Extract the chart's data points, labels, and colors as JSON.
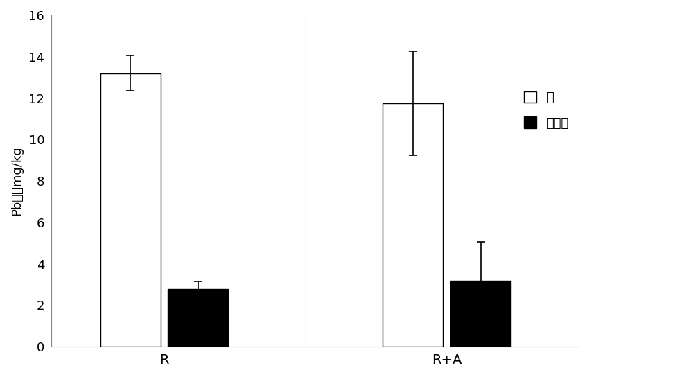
{
  "groups": [
    "R",
    "R+A"
  ],
  "series": [
    {
      "label": "根",
      "color": "#ffffff",
      "edgecolor": "#000000",
      "values": [
        13.2,
        11.75
      ],
      "errors": [
        0.85,
        2.5
      ]
    },
    {
      "label": "地上部",
      "color": "#000000",
      "edgecolor": "#000000",
      "values": [
        2.8,
        3.2
      ],
      "errors": [
        0.35,
        1.85
      ]
    }
  ],
  "ylabel": "Pb含量mg/kg",
  "ylim": [
    0,
    16
  ],
  "yticks": [
    0,
    2,
    4,
    6,
    8,
    10,
    12,
    14,
    16
  ],
  "bar_width": 0.32,
  "background_color": "#ffffff",
  "fig_width": 10.0,
  "fig_height": 5.44
}
